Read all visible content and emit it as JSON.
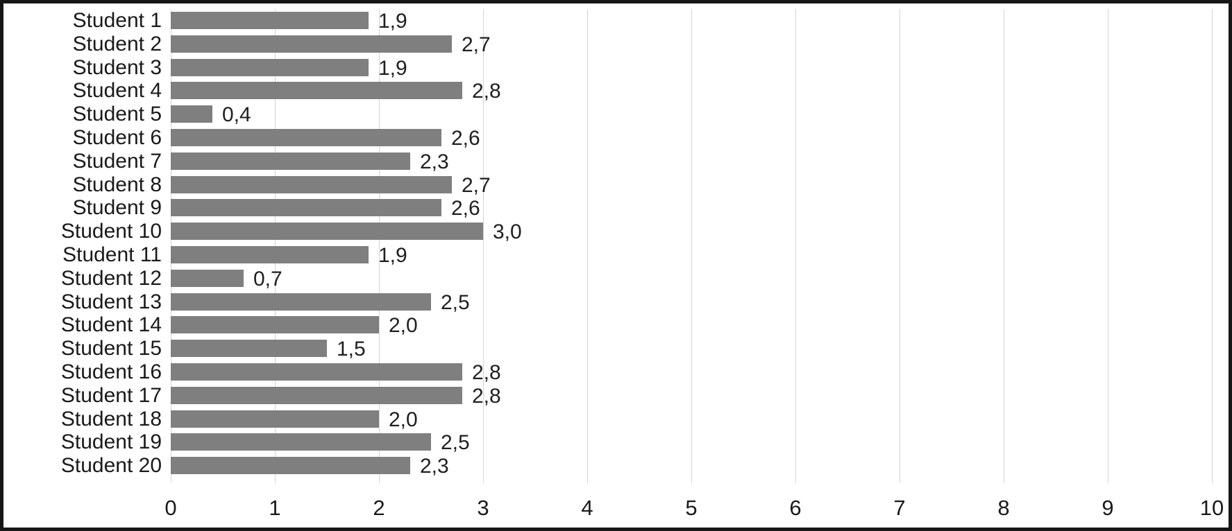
{
  "chart_data": {
    "type": "bar",
    "orientation": "horizontal",
    "title": "",
    "xlabel": "",
    "ylabel": "",
    "grid": true,
    "legend": false,
    "xlim": [
      0,
      10
    ],
    "x_ticks": [
      "0",
      "1",
      "2",
      "3",
      "4",
      "5",
      "6",
      "7",
      "8",
      "9",
      "10"
    ],
    "categories": [
      "Student 1",
      "Student 2",
      "Student 3",
      "Student 4",
      "Student 5",
      "Student 6",
      "Student 7",
      "Student 8",
      "Student 9",
      "Student 10",
      "Student 11",
      "Student 12",
      "Student 13",
      "Student 14",
      "Student 15",
      "Student 16",
      "Student 17",
      "Student 18",
      "Student 19",
      "Student 20"
    ],
    "values": [
      1.9,
      2.7,
      1.9,
      2.8,
      0.4,
      2.6,
      2.3,
      2.7,
      2.6,
      3.0,
      1.9,
      0.7,
      2.5,
      2.0,
      1.5,
      2.8,
      2.8,
      2.0,
      2.5,
      2.3
    ],
    "value_labels": [
      "1,9",
      "2,7",
      "1,9",
      "2,8",
      "0,4",
      "2,6",
      "2,3",
      "2,7",
      "2,6",
      "3,0",
      "1,9",
      "0,7",
      "2,5",
      "2,0",
      "1,5",
      "2,8",
      "2,8",
      "2,0",
      "2,5",
      "2,3"
    ],
    "colors": {
      "bar": "#7f7f7f",
      "gridline": "#d4d4d4",
      "text": "#1a1a1a",
      "border": "#161616",
      "background": "#ffffff"
    }
  }
}
